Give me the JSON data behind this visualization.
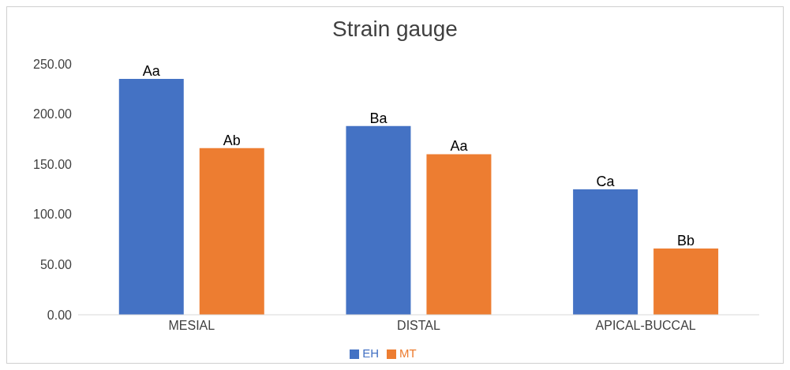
{
  "chart_data": {
    "type": "bar",
    "title": "Strain gauge",
    "categories": [
      "MESIAL",
      "DISTAL",
      "APICAL-BUCCAL"
    ],
    "series": [
      {
        "name": "EH",
        "color": "#4472c4",
        "values": [
          235,
          188,
          125
        ],
        "value_labels": [
          "Aa",
          "Ba",
          "Ca"
        ]
      },
      {
        "name": "MT",
        "color": "#ed7d31",
        "values": [
          166,
          160,
          66
        ],
        "value_labels": [
          "Ab",
          "Aa",
          "Bb"
        ]
      }
    ],
    "ylim": [
      0,
      250
    ],
    "yticks": [
      {
        "value": 0,
        "label": "0.00"
      },
      {
        "value": 50,
        "label": "50.00"
      },
      {
        "value": 100,
        "label": "100.00"
      },
      {
        "value": 150,
        "label": "150.00"
      },
      {
        "value": 200,
        "label": "200.00"
      },
      {
        "value": 250,
        "label": "250.00"
      }
    ],
    "grid": false,
    "legend": "bottom"
  }
}
